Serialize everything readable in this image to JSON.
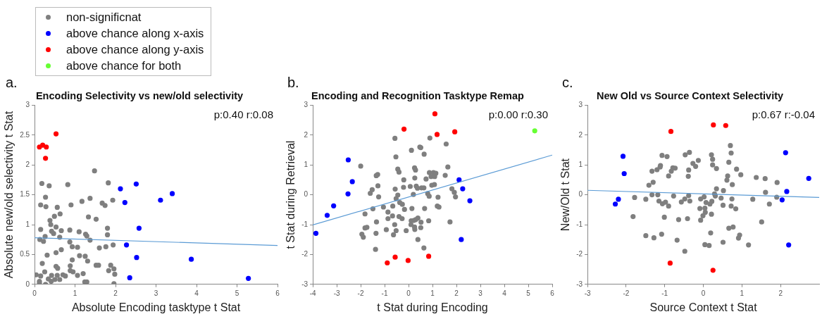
{
  "chart_data": [
    {
      "type": "scatter",
      "title": "Encoding Selectivity vs new/old selectivity",
      "xlabel": "Absolute Encoding tasktype t Stat",
      "ylabel": "Absolute new/old selectivity t Stat",
      "annotations": [
        "a.",
        "p:0.40 r:0.08"
      ],
      "xlim": [
        0,
        6
      ],
      "ylim": [
        0,
        3
      ],
      "xticks": [
        0,
        1,
        2,
        3,
        4,
        5,
        6
      ],
      "yticks": [
        0,
        0.5,
        1,
        1.5,
        2,
        2.5,
        3
      ],
      "grid": false,
      "legend": "top left",
      "marker": "circle",
      "series": [
        {
          "name": "non-significnat",
          "color": "#7f7f7f",
          "x": [
            1.48,
            0.18,
            0.36,
            0.82,
            1.82,
            0.27,
            0.15,
            0.28,
            0.56,
            0.9,
            1.17,
            1.37,
            1.67,
            1.74,
            1.93,
            0.49,
            0.63,
            0.38,
            0.4,
            0.53,
            1.33,
            1.52,
            0.15,
            0.42,
            0.47,
            0.66,
            0.87,
            1.1,
            1.26,
            1.29,
            1.8,
            1.8,
            0.13,
            0.22,
            0.26,
            0.62,
            0.87,
            0.93,
            1.37,
            1.6,
            1.76,
            1.94,
            0.66,
            0.31,
            0.53,
            1.06,
            1.11,
            1.25,
            1.31,
            0.93,
            0.53,
            0.57,
            0.19,
            0.25,
            0.88,
            0.88,
            0.95,
            1.06,
            1.2,
            1.52,
            1.58,
            1.88,
            1.96,
            1.98,
            1.83,
            0.04,
            0.12,
            0.15,
            0.27,
            0.34,
            0.42,
            0.5,
            0.56,
            0.62,
            0.7,
            0.76,
            1.24,
            1.29,
            1.96,
            0.12,
            0.41
          ],
          "values": [
            1.9,
            1.69,
            1.65,
            1.67,
            1.7,
            1.46,
            1.33,
            1.3,
            1.29,
            1.33,
            1.39,
            1.44,
            1.36,
            1.32,
            1.41,
            1.14,
            1.18,
            1.07,
            1.0,
            0.96,
            1.13,
            1.09,
            0.92,
            0.89,
            0.85,
            0.9,
            0.91,
            0.88,
            0.84,
            0.81,
            0.94,
            0.83,
            0.75,
            0.72,
            0.8,
            0.79,
            0.71,
            0.63,
            0.74,
            0.61,
            0.63,
            0.66,
            0.58,
            0.49,
            0.53,
            0.62,
            0.48,
            0.47,
            0.39,
            0.41,
            0.3,
            0.27,
            0.35,
            0.21,
            0.31,
            0.23,
            0.21,
            0.15,
            0.18,
            0.32,
            0.32,
            0.32,
            0.26,
            0.17,
            0.23,
            0.16,
            0.05,
            0.14,
            0.0,
            0.09,
            0.15,
            0.08,
            0.15,
            0.08,
            0.16,
            0.14,
            0.04,
            0.04,
            0.01,
            0.02,
            0.05
          ]
        },
        {
          "name": "above chance along x-axis",
          "color": "#0000ff",
          "x": [
            2.12,
            2.51,
            2.23,
            3.11,
            3.4,
            2.58,
            2.27,
            2.52,
            2.35,
            3.87,
            5.28
          ],
          "values": [
            1.6,
            1.68,
            1.37,
            1.41,
            1.52,
            0.94,
            0.66,
            0.45,
            0.11,
            0.42,
            0.1
          ]
        },
        {
          "name": "above chance along y-axis",
          "color": "#ff0000",
          "x": [
            0.12,
            0.2,
            0.29,
            0.27,
            0.53
          ],
          "values": [
            2.3,
            2.33,
            2.3,
            2.11,
            2.52
          ]
        },
        {
          "name": "above chance for both",
          "color": "#66ff33"
        },
        {
          "type": "line",
          "marker": "none",
          "color": "#5b9bd5",
          "x": [
            0,
            6
          ],
          "values": [
            0.78,
            0.65
          ]
        }
      ]
    },
    {
      "type": "scatter",
      "title": "Encoding and Recognition Tasktype Remap",
      "xlabel": "t Stat during Encoding",
      "ylabel": "t Stat during Retrieval",
      "annotations": [
        "b.",
        "p:0.00 r:0.30"
      ],
      "xlim": [
        -4,
        6
      ],
      "ylim": [
        -3,
        3
      ],
      "xticks": [
        -4,
        -3,
        -2,
        -1,
        0,
        1,
        2,
        3,
        4,
        5,
        6
      ],
      "yticks": [
        -3,
        -2,
        -1,
        0,
        1,
        2,
        3
      ],
      "grid": false,
      "marker": "circle",
      "series": [
        {
          "color": "#7f7f7f",
          "x": [
            -0.57,
            0.89,
            0.12,
            0.47,
            0.51,
            0.65,
            1.57,
            -0.53,
            -2.0,
            -0.45,
            -0.4,
            0.25,
            0.29,
            -1.29,
            -1.35,
            1.64,
            0.87,
            1.04,
            1.14,
            0.94,
            1.09,
            1.53,
            -0.2,
            0.26,
            0.73,
            -1.28,
            0.07,
            0.32,
            0.37,
            0.54,
            0.64,
            0.97,
            1.08,
            -0.56,
            -0.21,
            -1.52,
            -1.6,
            -1.25,
            0.2,
            0.8,
            0.86,
            1.23,
            1.81,
            1.91,
            1.96,
            -0.45,
            -0.52,
            -0.37,
            -0.26,
            -0.17,
            0.14,
            -1.05,
            -0.66,
            -1.49,
            -1.82,
            -0.86,
            -0.67,
            -0.4,
            -0.27,
            -0.86,
            0.67,
            1.2,
            1.27,
            0.39,
            0.3,
            0.11,
            0.22,
            0.52,
            0.84,
            1.73,
            -1.34,
            0.1,
            -0.58,
            0.25,
            0.51,
            -1.82,
            -1.74,
            -0.93,
            -0.52,
            -0.1,
            0.26,
            -1.36,
            -1.95,
            -1.89,
            -0.63,
            0.39,
            -1.38,
            0.64
          ],
          "values": [
            1.89,
            1.9,
            1.49,
            1.6,
            1.58,
            1.36,
            1.7,
            1.27,
            0.96,
            0.86,
            0.76,
            0.9,
            0.83,
            0.68,
            0.64,
            0.93,
            0.74,
            0.74,
            0.72,
            0.61,
            0.61,
            0.65,
            0.5,
            0.56,
            0.53,
            0.3,
            0.28,
            0.29,
            0.22,
            0.23,
            0.23,
            0.32,
            0.34,
            0.19,
            0.25,
            0.17,
            0.05,
            -0.07,
            0.01,
            0.04,
            -0.05,
            -0.08,
            0.2,
            0.08,
            -0.07,
            -0.01,
            -0.13,
            -0.26,
            -0.32,
            -0.49,
            -0.46,
            -0.41,
            -0.38,
            -0.47,
            -0.64,
            -0.58,
            -0.71,
            -0.73,
            -0.8,
            -0.8,
            -0.46,
            -0.38,
            -0.41,
            -0.78,
            -0.83,
            -0.87,
            -0.86,
            -0.92,
            -0.87,
            -0.91,
            -0.91,
            -1.0,
            -1.0,
            -1.08,
            -1.1,
            -1.11,
            -1.09,
            -1.17,
            -1.2,
            -1.2,
            -1.16,
            -1.29,
            -1.32,
            -1.42,
            -1.34,
            -1.5,
            -1.83,
            -1.78
          ]
        },
        {
          "color": "#0000ff",
          "x": [
            -2.52,
            -2.35,
            -2.53,
            -3.13,
            -3.4,
            -3.87,
            2.11,
            2.26,
            2.56,
            2.2
          ],
          "values": [
            1.17,
            0.44,
            0.03,
            -0.37,
            -0.69,
            -1.29,
            0.5,
            0.2,
            -0.2,
            -1.5
          ]
        },
        {
          "color": "#ff0000",
          "x": [
            1.1,
            -0.19,
            1.19,
            1.93,
            -0.89,
            -0.56,
            -0.02,
            0.84
          ],
          "values": [
            2.71,
            2.2,
            2.02,
            2.11,
            -2.28,
            -2.09,
            -2.2,
            -2.06
          ]
        },
        {
          "color": "#66ff33",
          "x": [
            5.27
          ],
          "values": [
            2.14
          ]
        },
        {
          "type": "line",
          "marker": "none",
          "color": "#5b9bd5",
          "x": [
            -4,
            6
          ],
          "values": [
            -1.01,
            1.33
          ]
        }
      ]
    },
    {
      "type": "scatter",
      "title": "New Old vs Source Context Selectivity",
      "xlabel": "Source Context t Stat",
      "ylabel": "New/Old t Stat",
      "annotations": [
        "c.",
        "p:0.67 r:-0.04"
      ],
      "xlim": [
        -3,
        3
      ],
      "ylim": [
        -3,
        3
      ],
      "xticks": [
        -3,
        -2,
        -1,
        0,
        1,
        2
      ],
      "yticks": [
        -3,
        -2,
        -1,
        0,
        1,
        2,
        3
      ],
      "grid": false,
      "marker": "circle",
      "series": [
        {
          "color": "#7f7f7f",
          "x": [
            0.7,
            0.72,
            0.21,
            0.24,
            0.24,
            0.34,
            0.66,
            -1.07,
            -0.94,
            -0.47,
            -0.36,
            -0.13,
            -0.27,
            -0.2,
            -1.11,
            -1.12,
            -1.2,
            -1.33,
            -0.79,
            -0.73,
            -0.83,
            -0.9,
            -0.38,
            -0.39,
            -1.3,
            -1.41,
            0.63,
            0.61,
            0.75,
            0.86,
            0.97,
            1.37,
            1.6,
            1.91,
            1.61,
            0.34,
            0.52,
            0.29,
            0.31,
            -1.33,
            -1.18,
            -0.77,
            -1.78,
            -1.49,
            -0.38,
            -0.48,
            0.02,
            -0.07,
            0.46,
            0.74,
            1.28,
            1.9,
            -1.15,
            -1.06,
            -0.98,
            -0.9,
            -0.57,
            -0.35,
            0.07,
            0.17,
            0.22,
            0.51,
            0.72,
            0.84,
            1.71,
            -0.09,
            0.04,
            0.05,
            -0.01,
            0.21,
            -1.82,
            -1.01,
            -0.64,
            -0.41,
            -0.07,
            1.51,
            0.66,
            0.77,
            0.19,
            0.94,
            0.91,
            -1.49,
            -1.28,
            -1.08,
            -0.68,
            0.04,
            0.15,
            0.51,
            1.17,
            -0.48
          ],
          "values": [
            1.65,
            1.4,
            1.34,
            1.19,
            1.0,
            0.88,
            1.09,
            1.32,
            1.28,
            1.34,
            1.42,
            1.15,
            1.05,
            0.95,
            0.98,
            0.93,
            0.84,
            0.79,
            0.9,
            0.89,
            0.79,
            0.63,
            0.83,
            0.62,
            0.42,
            0.32,
            0.63,
            0.49,
            0.34,
            0.86,
            0.67,
            0.58,
            0.54,
            0.41,
            0.08,
            0.2,
            0.14,
            0.03,
            -0.04,
            0.0,
            0.0,
            -0.04,
            -0.09,
            -0.15,
            -0.03,
            -0.14,
            -0.07,
            -0.14,
            -0.11,
            -0.14,
            -0.15,
            -0.08,
            -0.21,
            -0.3,
            -0.25,
            -0.38,
            -0.24,
            -0.21,
            -0.26,
            -0.31,
            -0.22,
            -0.35,
            -0.38,
            -0.47,
            -0.31,
            -0.46,
            -0.45,
            -0.59,
            -0.7,
            -0.65,
            -0.73,
            -0.75,
            -0.83,
            -0.8,
            -0.85,
            -0.91,
            -1.12,
            -1.08,
            -1.28,
            -1.35,
            -1.45,
            -1.37,
            -1.44,
            -1.32,
            -1.52,
            -1.67,
            -1.7,
            -1.59,
            -1.68,
            -1.89
          ]
        },
        {
          "color": "#0000ff",
          "x": [
            -2.08,
            -2.05,
            -2.2,
            -2.28,
            2.13,
            2.73,
            2.16,
            2.04,
            2.21
          ],
          "values": [
            1.29,
            0.71,
            -0.15,
            -0.31,
            1.41,
            0.55,
            0.11,
            -0.17,
            -1.68
          ]
        },
        {
          "color": "#ff0000",
          "x": [
            -0.84,
            0.26,
            0.58,
            -0.86,
            0.25
          ],
          "values": [
            2.12,
            2.34,
            2.32,
            -2.29,
            -2.53
          ]
        },
        {
          "type": "line",
          "marker": "none",
          "color": "#5b9bd5",
          "x": [
            -3,
            3
          ],
          "values": [
            0.15,
            -0.09
          ]
        }
      ]
    }
  ]
}
